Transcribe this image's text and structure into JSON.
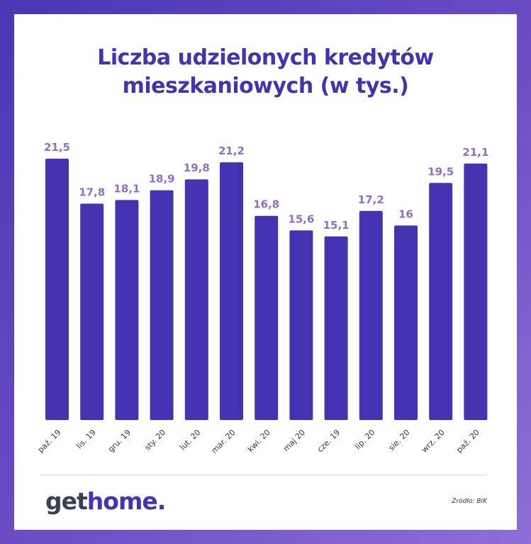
{
  "title_line1": "Liczba udzielonych kredytów",
  "title_line2": "mieszkaniowych (w tys.)",
  "logo": {
    "part1": "get",
    "part2": "home."
  },
  "source": "Źródło: BIK",
  "colors": {
    "bar": "#4433b0",
    "value_label": "#8e6fc8",
    "tick_label": "#333333",
    "frame": "#5a3fbf"
  },
  "chart_data": {
    "type": "bar",
    "title": "Liczba udzielonych kredytów mieszkaniowych (w tys.)",
    "categories": [
      "paź. 19",
      "lis. 19",
      "gru. 19",
      "sty. 20",
      "lut. 20",
      "mar. 20",
      "kwi. 20",
      "maj 20",
      "cze. 19",
      "lip. 20",
      "sie. 20",
      "wrz. 20",
      "paź. 20"
    ],
    "values": [
      21.5,
      17.8,
      18.1,
      18.9,
      19.8,
      21.2,
      16.8,
      15.6,
      15.1,
      17.2,
      16,
      19.5,
      21.1
    ],
    "value_labels": [
      "21,5",
      "17,8",
      "18,1",
      "18,9",
      "19,8",
      "21,2",
      "16,8",
      "15,6",
      "15,1",
      "17,2",
      "16",
      "19,5",
      "21,1"
    ],
    "xlabel": "",
    "ylabel": "",
    "ylim": [
      0,
      21.5
    ],
    "grid": false,
    "legend": "none"
  }
}
